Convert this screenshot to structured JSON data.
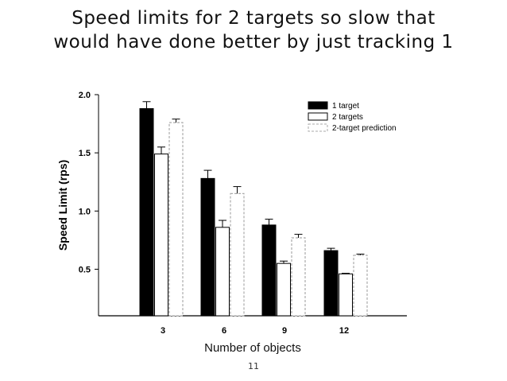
{
  "slide": {
    "title_line1": "Speed limits for 2 targets so slow that",
    "title_line2": "would have done better by just tracking 1",
    "page_number": "11"
  },
  "chart_data": {
    "type": "bar",
    "title": "",
    "xlabel": "Number of objects",
    "ylabel": "Speed Limit (rps)",
    "categories": [
      "3",
      "6",
      "9",
      "12"
    ],
    "ylim": [
      0.1,
      2.0
    ],
    "yticks": [
      "0.5",
      "1.0",
      "1.5",
      "2.0"
    ],
    "ytick_values": [
      0.5,
      1.0,
      1.5,
      2.0
    ],
    "grid": false,
    "legend_position": "top-right",
    "series": [
      {
        "name": "1 target",
        "values": [
          1.88,
          1.28,
          0.88,
          0.66
        ],
        "errors": [
          0.06,
          0.07,
          0.05,
          0.02
        ],
        "style": "solid",
        "color": "#000000"
      },
      {
        "name": "2 targets",
        "values": [
          1.49,
          0.86,
          0.55,
          0.46
        ],
        "errors": [
          0.06,
          0.06,
          0.02,
          0.005
        ],
        "style": "outline",
        "color": "#000000"
      },
      {
        "name": "2-target prediction",
        "values": [
          1.76,
          1.15,
          0.77,
          0.62
        ],
        "errors": [
          0.03,
          0.06,
          0.03,
          0.01
        ],
        "style": "dashed",
        "color": "#aaaaaa"
      }
    ]
  }
}
